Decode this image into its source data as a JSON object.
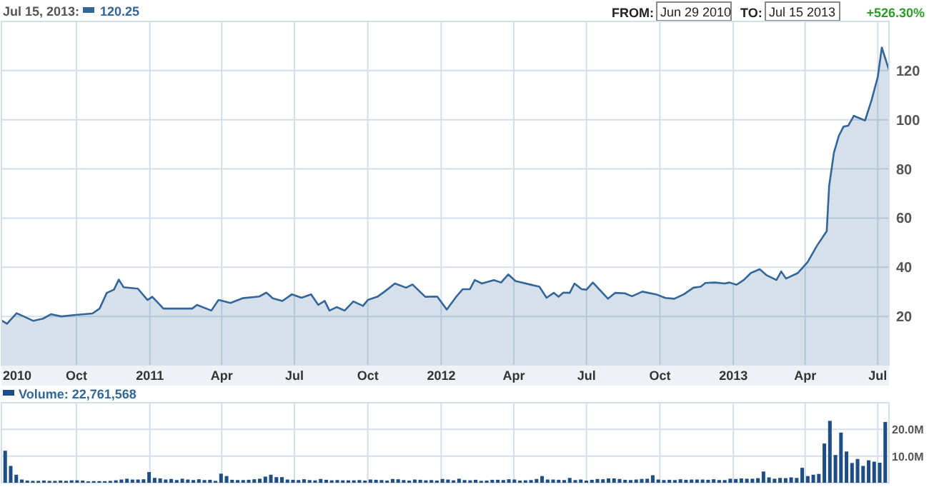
{
  "chart_data": [
    {
      "type": "area",
      "annotations": [
        "Jul 15, 2013:",
        "120.25",
        "FROM:",
        "Jun 29 2010",
        "TO:",
        "Jul 15 2013",
        "+526.30%"
      ],
      "xlim": [
        "2010-06-29",
        "2013-07-15"
      ],
      "xticks": [
        {
          "value": "2010-06-29",
          "label": "2010"
        },
        {
          "value": "2010-10-01",
          "label": "Oct"
        },
        {
          "value": "2011-01-01",
          "label": "2011"
        },
        {
          "value": "2011-04-01",
          "label": "Apr"
        },
        {
          "value": "2011-07-01",
          "label": "Jul"
        },
        {
          "value": "2011-10-01",
          "label": "Oct"
        },
        {
          "value": "2012-01-01",
          "label": "2012"
        },
        {
          "value": "2012-04-01",
          "label": "Apr"
        },
        {
          "value": "2012-07-01",
          "label": "Jul"
        },
        {
          "value": "2012-10-01",
          "label": "Oct"
        },
        {
          "value": "2013-01-01",
          "label": "2013"
        },
        {
          "value": "2013-04-01",
          "label": "Apr"
        },
        {
          "value": "2013-07-01",
          "label": "Jul"
        }
      ],
      "ylim": [
        0,
        140
      ],
      "yticks": [
        20,
        40,
        60,
        80,
        100,
        120
      ],
      "grid": true,
      "series": [
        {
          "color": "#336699",
          "x": [
            "2010-06-29",
            "2010-07-06",
            "2010-07-18",
            "2010-07-27",
            "2010-08-08",
            "2010-08-20",
            "2010-08-30",
            "2010-09-12",
            "2010-09-30",
            "2010-10-21",
            "2010-10-30",
            "2010-11-08",
            "2010-11-17",
            "2010-11-23",
            "2010-11-29",
            "2010-12-17",
            "2010-12-29",
            "2011-01-04",
            "2011-01-18",
            "2011-02-02",
            "2011-02-23",
            "2011-03-01",
            "2011-03-19",
            "2011-03-28",
            "2011-04-12",
            "2011-04-27",
            "2011-05-18",
            "2011-05-27",
            "2011-06-04",
            "2011-06-16",
            "2011-06-28",
            "2011-07-10",
            "2011-07-22",
            "2011-07-31",
            "2011-08-08",
            "2011-08-14",
            "2011-08-23",
            "2011-09-02",
            "2011-09-13",
            "2011-09-25",
            "2011-10-01",
            "2011-10-13",
            "2011-10-22",
            "2011-11-04",
            "2011-11-18",
            "2011-11-26",
            "2011-12-12",
            "2011-12-27",
            "2012-01-08",
            "2012-01-20",
            "2012-01-28",
            "2012-02-06",
            "2012-02-12",
            "2012-02-21",
            "2012-03-07",
            "2012-03-16",
            "2012-03-25",
            "2012-04-03",
            "2012-04-21",
            "2012-05-03",
            "2012-05-12",
            "2012-05-21",
            "2012-05-27",
            "2012-06-02",
            "2012-06-10",
            "2012-06-16",
            "2012-06-25",
            "2012-07-01",
            "2012-07-09",
            "2012-07-28",
            "2012-08-06",
            "2012-08-18",
            "2012-08-27",
            "2012-09-09",
            "2012-09-26",
            "2012-10-08",
            "2012-10-19",
            "2012-10-31",
            "2012-11-12",
            "2012-11-21",
            "2012-11-27",
            "2012-12-09",
            "2012-12-21",
            "2012-12-27",
            "2013-01-05",
            "2013-01-14",
            "2013-01-23",
            "2013-02-03",
            "2013-02-12",
            "2013-02-24",
            "2013-03-02",
            "2013-03-08",
            "2013-03-23",
            "2013-04-04",
            "2013-04-16",
            "2013-04-28",
            "2013-05-01",
            "2013-05-07",
            "2013-05-13",
            "2013-05-19",
            "2013-05-25",
            "2013-06-01",
            "2013-06-15",
            "2013-06-23",
            "2013-07-01",
            "2013-07-06",
            "2013-07-15"
          ],
          "values": [
            18.4,
            17,
            21.3,
            20,
            18.2,
            19.1,
            20.9,
            20,
            20.6,
            21.2,
            23.2,
            29.6,
            30.9,
            35,
            31.9,
            31.3,
            26.7,
            28,
            23.2,
            23.2,
            23.2,
            24.7,
            22.4,
            26.7,
            25.5,
            27.4,
            28.1,
            29.7,
            27.4,
            26.3,
            29,
            27.6,
            29,
            24.7,
            26.3,
            22.4,
            23.8,
            22.4,
            26.1,
            24.3,
            26.7,
            28,
            30.1,
            33.4,
            31.7,
            33,
            28,
            28.1,
            22.8,
            28.1,
            31.1,
            31.1,
            34.8,
            33.4,
            34.8,
            33.8,
            37.1,
            34.4,
            33,
            32.1,
            27.6,
            29.6,
            28,
            29.7,
            29.6,
            33.4,
            31.1,
            30.9,
            33.8,
            27.2,
            29.6,
            29.4,
            28.2,
            30.1,
            29,
            27.5,
            27.2,
            29,
            31.7,
            32.1,
            33.6,
            33.8,
            33.4,
            33.8,
            32.9,
            34.8,
            37.7,
            39.2,
            36.7,
            34.8,
            38.3,
            35.4,
            37.7,
            42.1,
            48.9,
            54.7,
            73,
            86.6,
            93.3,
            97.2,
            97.6,
            101.6,
            99.7,
            107.8,
            117.5,
            129.4,
            120.3
          ]
        }
      ]
    },
    {
      "type": "bar",
      "title": "Volume: 22,761,568",
      "color": "#1f4e87",
      "categories": [
        null,
        null,
        null,
        null,
        null,
        null,
        null,
        null,
        null,
        null,
        null,
        null,
        null,
        null,
        null,
        null,
        null,
        null,
        null,
        null,
        null,
        null,
        null,
        null,
        null,
        null,
        null,
        null,
        null,
        null,
        null,
        null,
        null,
        null,
        null,
        null,
        null,
        null,
        null,
        null,
        null,
        null,
        null,
        null,
        null,
        null,
        null,
        null,
        null,
        null,
        null,
        null,
        null,
        null,
        null,
        null,
        null,
        null,
        null,
        null,
        null,
        null,
        null,
        null,
        null,
        null,
        null,
        null,
        null,
        null,
        null,
        null,
        null,
        null,
        null,
        null,
        null,
        null,
        null,
        null,
        null,
        null,
        null,
        null,
        null,
        null,
        null,
        null,
        null,
        null,
        null,
        null,
        null,
        null,
        null,
        null,
        null,
        null,
        null,
        null,
        null,
        null,
        null,
        null,
        null,
        null,
        null,
        null,
        null,
        null,
        null,
        null,
        null,
        null,
        null,
        null,
        null,
        null,
        null,
        null,
        null,
        null,
        null,
        null,
        null,
        null,
        null,
        null,
        null,
        null,
        null,
        null,
        null,
        null,
        null,
        null,
        null,
        null,
        null,
        null,
        null,
        null,
        null,
        null,
        null,
        null,
        null,
        null,
        null,
        null,
        null,
        null,
        null,
        null,
        null,
        null,
        null,
        null,
        null,
        null
      ],
      "values": [
        12,
        6.3,
        3,
        1.2,
        0.8,
        0.7,
        0.7,
        0.8,
        0.7,
        0.7,
        0.8,
        0.7,
        0.9,
        0.9,
        0.8,
        0.5,
        0.6,
        0.6,
        0.6,
        0.7,
        0.9,
        1.2,
        1.5,
        1.2,
        1.2,
        1.3,
        4,
        1.8,
        1.6,
        1.2,
        1.4,
        1,
        1.5,
        1.2,
        1,
        1.3,
        1,
        1.1,
        0.7,
        3.4,
        2.5,
        1.1,
        1,
        1,
        1.1,
        1.3,
        1.5,
        2.3,
        3,
        2.1,
        2.1,
        1.2,
        1.1,
        1,
        1.3,
        1,
        0.9,
        1.4,
        1.1,
        0.9,
        1,
        0.9,
        0.9,
        0.9,
        1,
        0.8,
        1.2,
        1.1,
        1,
        0.8,
        1.4,
        1.3,
        1,
        0.8,
        1.2,
        1.1,
        0.9,
        1,
        0.8,
        1.4,
        1.2,
        0.9,
        1.5,
        1,
        0.9,
        1.1,
        0.7,
        0.8,
        1.1,
        1.1,
        1,
        1.3,
        1.2,
        0.8,
        0.9,
        1,
        1.4,
        2.5,
        1.2,
        1.2,
        1.1,
        1,
        1.8,
        1,
        1.2,
        0.8,
        1.1,
        1.4,
        1.3,
        1.6,
        1.6,
        1.4,
        1.1,
        1,
        1.2,
        1.4,
        1.5,
        2.8,
        1.2,
        1,
        1.1,
        1,
        1.3,
        1.1,
        1.2,
        1.2,
        1.2,
        1.1,
        1.3,
        1,
        1,
        1.5,
        1.4,
        1.6,
        1.5,
        1.5,
        1.7,
        4.2,
        2,
        1.5,
        1.8,
        1.7,
        2,
        1.8,
        5.6,
        2.5,
        3,
        3.3,
        14.7,
        23.2,
        10.4,
        18.8,
        11.7,
        7.4,
        8.9,
        6.3,
        8.4,
        7.9,
        7.5,
        22.8
      ],
      "ylim": [
        0,
        30
      ],
      "yticks": [
        {
          "value": 10,
          "label": "10.0M"
        },
        {
          "value": 20,
          "label": "20.0M"
        }
      ],
      "grid": true
    }
  ]
}
